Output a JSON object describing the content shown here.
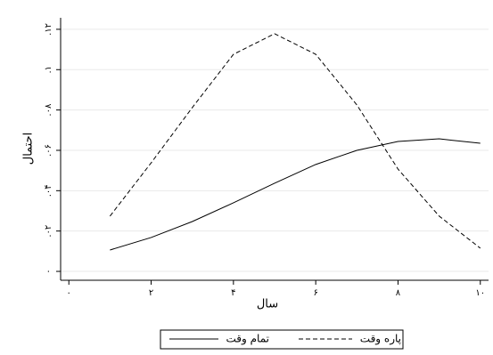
{
  "chart_data": {
    "type": "line",
    "x_label": "سال",
    "y_label": "احتمال",
    "x": [
      1,
      2,
      3,
      4,
      5,
      6,
      7,
      8,
      9,
      10
    ],
    "series": [
      {
        "name": "تمام وقت",
        "color": "#000000",
        "dash": "solid",
        "values": [
          0.0106,
          0.0168,
          0.0247,
          0.034,
          0.0437,
          0.053,
          0.06,
          0.0644,
          0.0657,
          0.0635
        ]
      },
      {
        "name": "پاره وقت",
        "color": "#000000",
        "dash": "dashed",
        "values": [
          0.0274,
          0.0538,
          0.0812,
          0.1076,
          0.1178,
          0.1076,
          0.0825,
          0.0507,
          0.0274,
          0.0115
        ]
      }
    ],
    "xlim": [
      -0.2,
      10.2
    ],
    "xticks": [
      {
        "value": 0,
        "label": "۰"
      },
      {
        "value": 2,
        "label": "۲"
      },
      {
        "value": 4,
        "label": "۴"
      },
      {
        "value": 6,
        "label": "۶"
      },
      {
        "value": 8,
        "label": "۸"
      },
      {
        "value": 10,
        "label": "۱۰"
      }
    ],
    "ylim": [
      -0.0044,
      0.1257
    ],
    "yticks": [
      {
        "value": 0,
        "label": "۰"
      },
      {
        "value": 0.02,
        "label": ".۰۲"
      },
      {
        "value": 0.04,
        "label": ".۰۴"
      },
      {
        "value": 0.06,
        "label": ".۰۶"
      },
      {
        "value": 0.08,
        "label": ".۰۸"
      },
      {
        "value": 0.1,
        "label": ".۱"
      },
      {
        "value": 0.12,
        "label": ".۱۲"
      }
    ],
    "grid": true,
    "legend": "bottom"
  }
}
